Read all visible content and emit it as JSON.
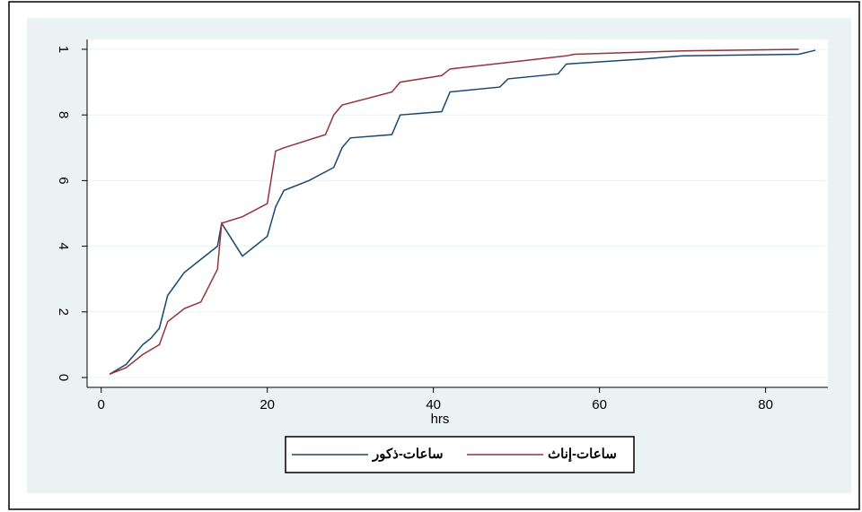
{
  "chart_data": {
    "type": "line",
    "x_label": "hrs",
    "xlim": [
      -1.7,
      87.5
    ],
    "ylim": [
      -0.03,
      1.03
    ],
    "xticks": [
      0,
      20,
      40,
      60,
      80
    ],
    "yticks": [
      0,
      {
        "value": 0.2,
        "label": "2"
      },
      {
        "value": 0.4,
        "label": "4"
      },
      {
        "value": 0.6,
        "label": "6"
      },
      {
        "value": 0.8,
        "label": "8"
      },
      1
    ],
    "grid": true,
    "series": [
      {
        "name": "ساعات-ذكور",
        "color": "#1a476f",
        "x": [
          1,
          3,
          5,
          6,
          7,
          8,
          10,
          12,
          14,
          14.5,
          17,
          20,
          21,
          22,
          25,
          28,
          29,
          30,
          35,
          36,
          41,
          42,
          48,
          49,
          55,
          56,
          65,
          70,
          84,
          86
        ],
        "values": [
          0.01,
          0.04,
          0.1,
          0.12,
          0.15,
          0.25,
          0.32,
          0.36,
          0.4,
          0.47,
          0.37,
          0.43,
          0.52,
          0.57,
          0.6,
          0.64,
          0.7,
          0.73,
          0.74,
          0.8,
          0.81,
          0.87,
          0.885,
          0.91,
          0.925,
          0.955,
          0.97,
          0.98,
          0.985,
          0.997
        ]
      },
      {
        "name": "ساعات-إناث",
        "color": "#90353b",
        "x": [
          1,
          3,
          5,
          7,
          8,
          10,
          12,
          14,
          14.5,
          17,
          20,
          21,
          22,
          27,
          28,
          29,
          35,
          36,
          41,
          42,
          49,
          56,
          57,
          70,
          84
        ],
        "values": [
          0.01,
          0.03,
          0.07,
          0.1,
          0.17,
          0.21,
          0.23,
          0.33,
          0.47,
          0.49,
          0.53,
          0.69,
          0.7,
          0.74,
          0.8,
          0.83,
          0.87,
          0.9,
          0.92,
          0.94,
          0.96,
          0.98,
          0.985,
          0.995,
          1
        ]
      }
    ]
  }
}
